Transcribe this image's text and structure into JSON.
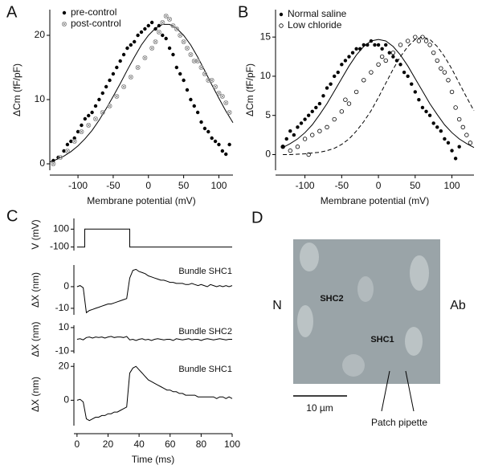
{
  "chart_data": [
    {
      "type": "scatter",
      "label": "A",
      "xlabel": "Membrane potential (mV)",
      "ylabel": "ΔCm (fF/pF)",
      "xlim": [
        -140,
        120
      ],
      "ylim": [
        -1,
        24
      ],
      "xticks": [
        -100,
        -50,
        0,
        50,
        100
      ],
      "yticks": [
        0,
        10,
        20
      ],
      "series": [
        {
          "name": "pre-control",
          "color": "#000000",
          "marker": "filled",
          "x": [
            -135,
            -128,
            -120,
            -115,
            -110,
            -105,
            -100,
            -95,
            -90,
            -85,
            -80,
            -75,
            -70,
            -65,
            -60,
            -55,
            -50,
            -45,
            -40,
            -35,
            -30,
            -25,
            -20,
            -15,
            -10,
            -5,
            0,
            5,
            10,
            15,
            20,
            25,
            30,
            35,
            40,
            45,
            50,
            55,
            60,
            65,
            70,
            75,
            80,
            85,
            90,
            95,
            100,
            105,
            110,
            115
          ],
          "values": [
            0.5,
            1,
            2,
            3,
            3.5,
            4,
            5,
            6,
            7,
            7.5,
            8,
            9,
            10,
            11,
            12,
            13,
            14,
            15,
            16,
            17,
            18,
            18.5,
            19,
            20,
            20.5,
            21,
            21.5,
            22,
            21,
            21.5,
            20,
            19.5,
            18,
            17,
            15,
            14,
            13,
            11.5,
            10,
            9,
            8,
            6.5,
            5.5,
            5,
            4,
            3.5,
            3,
            2,
            1.5,
            3
          ]
        },
        {
          "name": "post-control",
          "color": "#888888",
          "marker": "crossed",
          "x": [
            -135,
            -125,
            -115,
            -105,
            -95,
            -85,
            -75,
            -65,
            -55,
            -45,
            -35,
            -25,
            -15,
            -5,
            5,
            10,
            15,
            20,
            25,
            30,
            35,
            40,
            45,
            50,
            55,
            60,
            65,
            70,
            75,
            80,
            85,
            90,
            95,
            100,
            105,
            110,
            115
          ],
          "values": [
            0,
            1,
            2,
            3.5,
            5,
            6,
            7,
            8,
            9,
            10.5,
            12,
            13.5,
            15,
            16.5,
            18,
            19,
            20.5,
            22,
            23,
            22.5,
            21.5,
            21,
            20,
            19,
            18,
            17,
            16,
            16,
            15,
            14,
            13,
            13,
            12,
            11,
            10.5,
            9.5,
            8
          ]
        }
      ],
      "fits": [
        {
          "color": "#000000",
          "dash": false,
          "x": [
            -140,
            -130,
            -120,
            -110,
            -100,
            -90,
            -80,
            -70,
            -60,
            -50,
            -40,
            -30,
            -20,
            -10,
            0,
            10,
            20,
            30,
            40,
            50,
            60,
            70,
            80,
            90,
            100,
            110,
            120
          ],
          "values": [
            0.3,
            0.7,
            1.2,
            1.9,
            2.8,
            3.9,
            5.2,
            6.8,
            8.6,
            10.5,
            12.5,
            14.6,
            16.6,
            18.5,
            20,
            21.1,
            21.7,
            21.7,
            21.1,
            20,
            18.5,
            16.6,
            14.5,
            12.3,
            10.2,
            8.2,
            6.4
          ]
        }
      ]
    },
    {
      "type": "scatter",
      "label": "B",
      "xlabel": "Membrane potential (mV)",
      "ylabel": "ΔCm (fF/pF)",
      "xlim": [
        -140,
        130
      ],
      "ylim": [
        -2,
        18.5
      ],
      "xticks": [
        -100,
        -50,
        0,
        50,
        100
      ],
      "yticks": [
        0,
        5,
        10,
        15
      ],
      "series": [
        {
          "name": "Normal saline",
          "color": "#000000",
          "marker": "filled",
          "x": [
            -130,
            -125,
            -120,
            -115,
            -110,
            -105,
            -100,
            -95,
            -90,
            -85,
            -80,
            -75,
            -70,
            -65,
            -60,
            -55,
            -50,
            -45,
            -40,
            -35,
            -30,
            -25,
            -20,
            -15,
            -10,
            -5,
            0,
            5,
            10,
            15,
            20,
            25,
            30,
            35,
            40,
            45,
            50,
            55,
            60,
            65,
            70,
            75,
            80,
            85,
            90,
            95,
            100,
            105,
            110
          ],
          "values": [
            1,
            2,
            3,
            2.5,
            3.5,
            4,
            4.5,
            5,
            5.5,
            6,
            6.5,
            7.5,
            8.5,
            9,
            10,
            10.5,
            11.5,
            12,
            12.5,
            13,
            13.5,
            13.5,
            14,
            14,
            14.5,
            14,
            14,
            13.5,
            14,
            13,
            12.5,
            12,
            11.5,
            10.5,
            10,
            9,
            8,
            7,
            6,
            5.5,
            5,
            4,
            3.5,
            3,
            2,
            1.5,
            0.5,
            -0.5,
            1
          ]
        },
        {
          "name": "Low chloride",
          "color": "#000000",
          "marker": "open",
          "x": [
            -130,
            -120,
            -110,
            -100,
            -95,
            -90,
            -80,
            -70,
            -60,
            -50,
            -45,
            -40,
            -30,
            -20,
            -10,
            0,
            5,
            10,
            20,
            30,
            40,
            50,
            55,
            60,
            65,
            70,
            75,
            80,
            85,
            90,
            95,
            100,
            105,
            110,
            115,
            120,
            125
          ],
          "values": [
            1,
            0.5,
            1,
            2,
            0,
            2.5,
            3,
            3.5,
            4.5,
            5.5,
            7,
            6.5,
            8,
            9.5,
            10.5,
            11.5,
            12.5,
            12,
            13,
            14,
            14.5,
            15,
            14.5,
            15,
            14.5,
            14,
            13,
            12,
            11,
            10.5,
            9.5,
            8,
            6,
            4.5,
            3.5,
            2.5,
            1.5
          ]
        }
      ],
      "fits": [
        {
          "color": "#000000",
          "dash": false,
          "x": [
            -130,
            -120,
            -110,
            -100,
            -90,
            -80,
            -70,
            -60,
            -50,
            -40,
            -30,
            -20,
            -10,
            0,
            10,
            20,
            30,
            40,
            50,
            60,
            70,
            80,
            90,
            100,
            110,
            120,
            130
          ],
          "values": [
            0.9,
            1.4,
            2,
            2.8,
            3.8,
            5.1,
            6.5,
            8.1,
            9.7,
            11.3,
            12.7,
            13.8,
            14.5,
            14.7,
            14.5,
            13.8,
            12.7,
            11.3,
            9.7,
            8.1,
            6.5,
            5.1,
            3.8,
            2.8,
            2,
            1.4,
            0.9
          ]
        },
        {
          "color": "#000000",
          "dash": true,
          "x": [
            -130,
            -120,
            -110,
            -100,
            -90,
            -80,
            -70,
            -60,
            -50,
            -40,
            -30,
            -20,
            -10,
            0,
            10,
            20,
            30,
            40,
            50,
            60,
            70,
            80,
            90,
            100,
            110,
            120,
            130
          ],
          "values": [
            0,
            0,
            0.05,
            0.1,
            0.2,
            0.3,
            0.5,
            0.8,
            1.3,
            2,
            3,
            4.2,
            5.6,
            7.3,
            9.1,
            10.9,
            12.5,
            13.8,
            14.7,
            15,
            14.7,
            13.8,
            12.5,
            10.9,
            9.1,
            7.3,
            5.6
          ]
        }
      ]
    },
    {
      "type": "line",
      "label": "C",
      "ylabel": "V (mV)",
      "color": "#000000",
      "xlim": [
        -2,
        100
      ],
      "ylim": [
        -140,
        220
      ],
      "yticks": [
        100,
        -100
      ],
      "x": [
        0,
        5,
        5,
        34,
        34,
        100
      ],
      "values": [
        -100,
        -100,
        100,
        100,
        -100,
        -100
      ]
    },
    {
      "type": "line",
      "ylabel": "ΔX (nm)",
      "annotation": "Bundle SHC1",
      "color": "#000000",
      "xlim": [
        -2,
        100
      ],
      "ylim": [
        -13,
        10
      ],
      "yticks": [
        0,
        -10
      ],
      "x": [
        0,
        2,
        4,
        6,
        8,
        10,
        12,
        14,
        16,
        18,
        20,
        22,
        24,
        26,
        28,
        30,
        32,
        34,
        36,
        38,
        40,
        42,
        44,
        46,
        48,
        50,
        52,
        54,
        56,
        58,
        60,
        62,
        64,
        66,
        68,
        70,
        72,
        74,
        76,
        78,
        80,
        82,
        84,
        86,
        88,
        90,
        92,
        94,
        96,
        98,
        100
      ],
      "values": [
        0,
        0.5,
        -0.5,
        -12,
        -11,
        -10.5,
        -10,
        -9.5,
        -9,
        -8.5,
        -8,
        -8,
        -7.5,
        -7,
        -6.5,
        -6,
        -5.5,
        4,
        7.5,
        8,
        7,
        6.5,
        6,
        5,
        4.5,
        4,
        3.5,
        3,
        3,
        2.5,
        2,
        2,
        1.5,
        1.5,
        1.5,
        1,
        1,
        1.5,
        1,
        0.5,
        1,
        0.5,
        0,
        1,
        0.5,
        0,
        0.5,
        0,
        0.5,
        0,
        0.5
      ]
    },
    {
      "type": "line",
      "annotation": "Bundle SHC2",
      "ylabel": "ΔX (nm)",
      "color": "#000000",
      "xlim": [
        -2,
        100
      ],
      "ylim": [
        -12,
        12
      ],
      "yticks": [
        10,
        -10
      ],
      "x": [
        0,
        2,
        4,
        6,
        8,
        10,
        12,
        14,
        16,
        18,
        20,
        22,
        24,
        26,
        28,
        30,
        32,
        34,
        36,
        38,
        40,
        42,
        44,
        46,
        48,
        50,
        52,
        54,
        56,
        58,
        60,
        62,
        64,
        66,
        68,
        70,
        72,
        74,
        76,
        78,
        80,
        82,
        84,
        86,
        88,
        90,
        92,
        94,
        96,
        98,
        100
      ],
      "values": [
        0,
        0.5,
        -0.5,
        1.5,
        2,
        1,
        2,
        1.5,
        2,
        1,
        2,
        2.5,
        1.5,
        2,
        2,
        1.5,
        2.5,
        -0.5,
        0,
        -1,
        0,
        0.5,
        -0.5,
        0,
        -1,
        0,
        0.5,
        0,
        -0.5,
        0,
        0,
        -1,
        0.5,
        0,
        -0.5,
        0,
        0.5,
        -0.5,
        0,
        0,
        -1,
        0,
        0.5,
        0,
        -0.5,
        0,
        0.5,
        0,
        -0.5,
        0,
        0
      ]
    },
    {
      "type": "line",
      "annotation": "Bundle SHC1",
      "ylabel": "ΔX (nm)",
      "xlabel": "Time (ms)",
      "color": "#000000",
      "xlim": [
        -2,
        100
      ],
      "ylim": [
        -15,
        22
      ],
      "yticks": [
        20,
        0
      ],
      "xticks": [
        0,
        20,
        40,
        60,
        80,
        100
      ],
      "x": [
        0,
        2,
        4,
        6,
        8,
        10,
        12,
        14,
        16,
        18,
        20,
        22,
        24,
        26,
        28,
        30,
        32,
        34,
        36,
        38,
        40,
        42,
        44,
        46,
        48,
        50,
        52,
        54,
        56,
        58,
        60,
        62,
        64,
        66,
        68,
        70,
        72,
        74,
        76,
        78,
        80,
        82,
        84,
        86,
        88,
        90,
        92,
        94,
        96,
        98,
        100
      ],
      "values": [
        0,
        0.5,
        -1,
        -11,
        -12,
        -11,
        -10,
        -10,
        -9,
        -9,
        -8,
        -8,
        -7,
        -7,
        -6,
        -5,
        -4,
        16,
        19,
        20,
        18,
        16,
        14,
        12,
        11,
        10,
        9,
        8,
        7,
        6,
        6,
        5,
        5,
        4,
        4,
        3,
        3,
        3,
        3,
        2,
        2,
        2,
        2,
        2,
        2,
        1,
        2,
        2,
        1,
        2,
        1
      ]
    }
  ],
  "image_panel": {
    "label": "D",
    "left": "N",
    "right": "Ab",
    "cells": [
      "SHC2",
      "SHC1"
    ],
    "scale_bar": "10 µm",
    "pipette": "Patch pipette"
  }
}
